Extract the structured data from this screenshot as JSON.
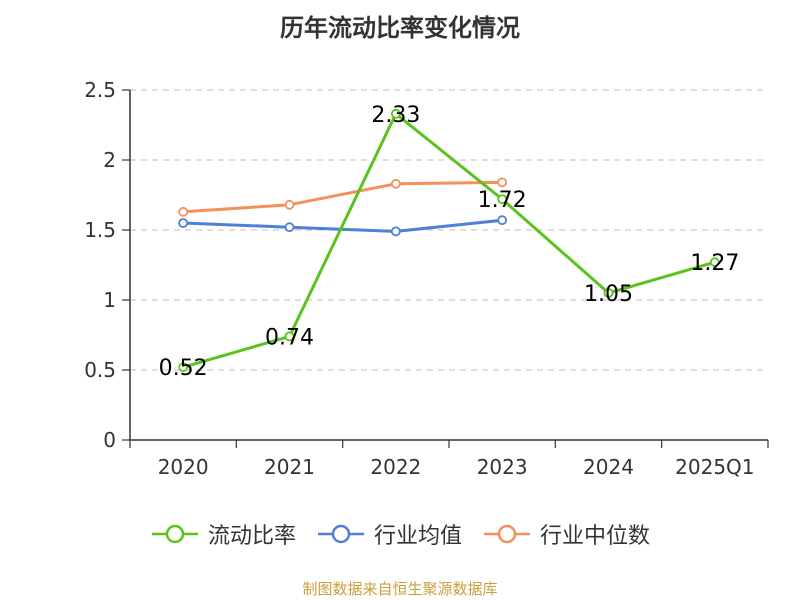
{
  "chart_data": {
    "type": "line",
    "title": "历年流动比率变化情况",
    "categories": [
      "2020",
      "2021",
      "2022",
      "2023",
      "2024",
      "2025Q1"
    ],
    "ylim": [
      0,
      2.5
    ],
    "yticks": [
      "0",
      "0.5",
      "1",
      "1.5",
      "2",
      "2.5"
    ],
    "grid": true,
    "legend_position": "bottom",
    "series": [
      {
        "name": "流动比率",
        "color": "#5cc21e",
        "values": [
          0.52,
          0.74,
          2.33,
          1.72,
          1.05,
          1.27
        ],
        "labels": [
          "0.52",
          "0.74",
          "2.33",
          "1.72",
          "1.05",
          "1.27"
        ]
      },
      {
        "name": "行业均值",
        "color": "#4f7fd8",
        "values": [
          1.55,
          1.52,
          1.49,
          1.57,
          null,
          null
        ]
      },
      {
        "name": "行业中位数",
        "color": "#f5905a",
        "values": [
          1.63,
          1.68,
          1.83,
          1.84,
          null,
          null
        ]
      }
    ]
  },
  "source_text": "制图数据来自恒生聚源数据库"
}
